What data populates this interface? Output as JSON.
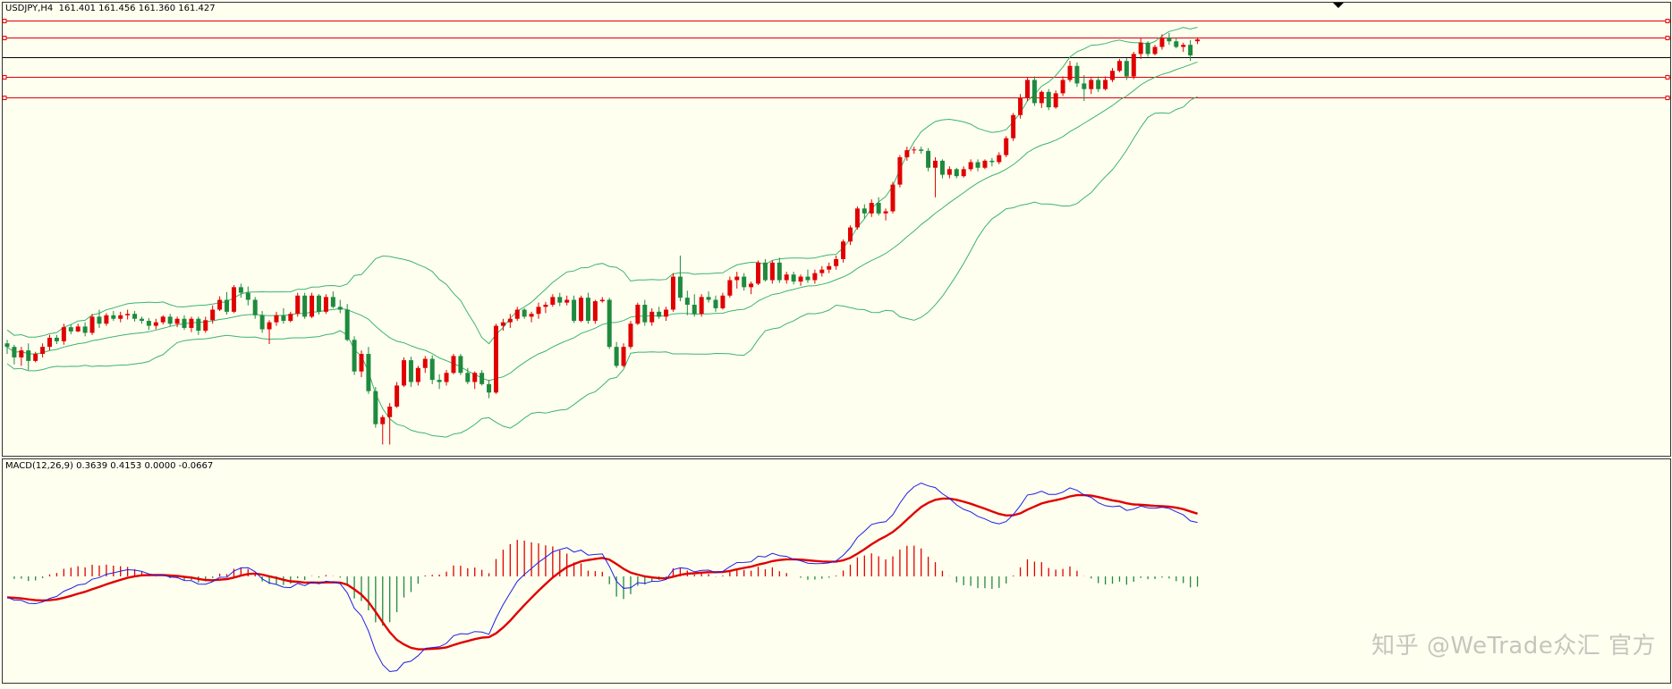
{
  "chart_data": [
    {
      "type": "candlestick",
      "name": "price",
      "symbol_label": "USDJPY,H4",
      "ohlc_header": "161.401 161.456 161.360 161.427",
      "header_text": "USDJPY,H4  161.401 161.456 161.360 161.427",
      "ylim": [
        155.5,
        161.95
      ],
      "horizontal_lines": [
        {
          "value": 161.7,
          "color": "#e00000"
        },
        {
          "value": 161.45,
          "color": "#e00000"
        },
        {
          "value": 161.18,
          "color": "#000000"
        },
        {
          "value": 160.9,
          "color": "#e00000"
        },
        {
          "value": 160.6,
          "color": "#e00000"
        }
      ],
      "bollinger": {
        "period": 20,
        "color": "#3cb371"
      },
      "bull_color": "#e00000",
      "bear_color": "#1e8a3e",
      "candles": [
        [
          157.1,
          157.15,
          156.95,
          157.05
        ],
        [
          157.05,
          157.08,
          156.8,
          156.9
        ],
        [
          156.9,
          157.05,
          156.78,
          157.0
        ],
        [
          157.0,
          157.1,
          156.72,
          156.85
        ],
        [
          156.85,
          156.98,
          156.83,
          156.95
        ],
        [
          156.95,
          157.1,
          156.9,
          157.05
        ],
        [
          157.05,
          157.22,
          157.0,
          157.18
        ],
        [
          157.18,
          157.22,
          157.09,
          157.13
        ],
        [
          157.13,
          157.38,
          157.08,
          157.33
        ],
        [
          157.33,
          157.37,
          157.23,
          157.27
        ],
        [
          157.27,
          157.38,
          157.26,
          157.34
        ],
        [
          157.34,
          157.4,
          157.2,
          157.25
        ],
        [
          157.25,
          157.52,
          157.22,
          157.48
        ],
        [
          157.48,
          157.58,
          157.32,
          157.38
        ],
        [
          157.38,
          157.53,
          157.35,
          157.5
        ],
        [
          157.5,
          157.56,
          157.42,
          157.45
        ],
        [
          157.45,
          157.55,
          157.4,
          157.5
        ],
        [
          157.5,
          157.58,
          157.44,
          157.52
        ],
        [
          157.52,
          157.56,
          157.41,
          157.45
        ],
        [
          157.45,
          157.48,
          157.38,
          157.42
        ],
        [
          157.42,
          157.46,
          157.29,
          157.35
        ],
        [
          157.35,
          157.45,
          157.3,
          157.4
        ],
        [
          157.4,
          157.5,
          157.37,
          157.48
        ],
        [
          157.48,
          157.52,
          157.34,
          157.38
        ],
        [
          157.38,
          157.48,
          157.33,
          157.45
        ],
        [
          157.45,
          157.5,
          157.29,
          157.32
        ],
        [
          157.32,
          157.48,
          157.26,
          157.45
        ],
        [
          157.45,
          157.48,
          157.22,
          157.28
        ],
        [
          157.28,
          157.48,
          157.25,
          157.43
        ],
        [
          157.43,
          157.64,
          157.38,
          157.58
        ],
        [
          157.58,
          157.77,
          157.56,
          157.72
        ],
        [
          157.72,
          157.83,
          157.51,
          157.55
        ],
        [
          157.55,
          157.93,
          157.53,
          157.9
        ],
        [
          157.9,
          157.95,
          157.75,
          157.82
        ],
        [
          157.82,
          157.91,
          157.64,
          157.72
        ],
        [
          157.72,
          157.76,
          157.45,
          157.5
        ],
        [
          157.5,
          157.56,
          157.25,
          157.3
        ],
        [
          157.3,
          157.43,
          157.09,
          157.4
        ],
        [
          157.4,
          157.55,
          157.35,
          157.5
        ],
        [
          157.5,
          157.6,
          157.38,
          157.42
        ],
        [
          157.42,
          157.55,
          157.4,
          157.52
        ],
        [
          157.52,
          157.82,
          157.48,
          157.78
        ],
        [
          157.78,
          157.82,
          157.45,
          157.48
        ],
        [
          157.48,
          157.82,
          157.46,
          157.78
        ],
        [
          157.78,
          157.8,
          157.51,
          157.55
        ],
        [
          157.55,
          157.8,
          157.52,
          157.76
        ],
        [
          157.76,
          157.84,
          157.6,
          157.62
        ],
        [
          157.62,
          157.72,
          157.53,
          157.58
        ],
        [
          157.58,
          157.66,
          157.13,
          157.15
        ],
        [
          157.15,
          157.2,
          156.65,
          156.7
        ],
        [
          156.7,
          157.0,
          156.62,
          156.95
        ],
        [
          156.95,
          157.05,
          156.38,
          156.42
        ],
        [
          156.42,
          156.48,
          155.9,
          155.95
        ],
        [
          155.95,
          156.08,
          155.66,
          156.05
        ],
        [
          156.05,
          156.25,
          155.66,
          156.2
        ],
        [
          156.2,
          156.55,
          156.18,
          156.5
        ],
        [
          156.5,
          156.9,
          156.48,
          156.86
        ],
        [
          156.86,
          156.91,
          156.48,
          156.55
        ],
        [
          156.55,
          156.78,
          156.5,
          156.75
        ],
        [
          156.75,
          156.92,
          156.68,
          156.88
        ],
        [
          156.88,
          156.93,
          156.52,
          156.58
        ],
        [
          156.58,
          156.66,
          156.45,
          156.55
        ],
        [
          156.55,
          156.72,
          156.5,
          156.68
        ],
        [
          156.68,
          156.95,
          156.66,
          156.92
        ],
        [
          156.92,
          156.95,
          156.65,
          156.68
        ],
        [
          156.68,
          156.75,
          156.52,
          156.55
        ],
        [
          156.55,
          156.7,
          156.45,
          156.68
        ],
        [
          156.68,
          156.72,
          156.5,
          156.52
        ],
        [
          156.52,
          156.58,
          156.32,
          156.4
        ],
        [
          156.4,
          157.38,
          156.38,
          157.35
        ],
        [
          157.35,
          157.45,
          157.28,
          157.4
        ],
        [
          157.4,
          157.52,
          157.32,
          157.45
        ],
        [
          157.45,
          157.62,
          157.42,
          157.58
        ],
        [
          157.58,
          157.6,
          157.45,
          157.48
        ],
        [
          157.48,
          157.55,
          157.4,
          157.52
        ],
        [
          157.52,
          157.68,
          157.45,
          157.62
        ],
        [
          157.62,
          157.69,
          157.53,
          157.65
        ],
        [
          157.65,
          157.8,
          157.62,
          157.76
        ],
        [
          157.76,
          157.82,
          157.63,
          157.68
        ],
        [
          157.68,
          157.78,
          157.64,
          157.72
        ],
        [
          157.72,
          157.78,
          157.39,
          157.42
        ],
        [
          157.42,
          157.78,
          157.4,
          157.75
        ],
        [
          157.75,
          157.82,
          157.38,
          157.42
        ],
        [
          157.42,
          157.72,
          157.38,
          157.7
        ],
        [
          157.7,
          157.76,
          157.68,
          157.72
        ],
        [
          157.72,
          157.75,
          157.02,
          157.05
        ],
        [
          157.05,
          157.12,
          156.75,
          156.78
        ],
        [
          156.78,
          157.1,
          156.76,
          157.05
        ],
        [
          157.05,
          157.42,
          157.02,
          157.38
        ],
        [
          157.38,
          157.68,
          157.36,
          157.65
        ],
        [
          157.65,
          157.72,
          157.35,
          157.4
        ],
        [
          157.4,
          157.6,
          157.35,
          157.55
        ],
        [
          157.55,
          157.62,
          157.45,
          157.48
        ],
        [
          157.48,
          157.62,
          157.42,
          157.58
        ],
        [
          157.58,
          158.1,
          157.55,
          158.05
        ],
        [
          158.05,
          158.35,
          157.7,
          157.75
        ],
        [
          157.75,
          157.85,
          157.5,
          157.65
        ],
        [
          157.65,
          157.8,
          157.48,
          157.52
        ],
        [
          157.52,
          157.8,
          157.48,
          157.76
        ],
        [
          157.76,
          157.84,
          157.68,
          157.72
        ],
        [
          157.72,
          157.78,
          157.55,
          157.6
        ],
        [
          157.6,
          157.82,
          157.58,
          157.78
        ],
        [
          157.78,
          158.05,
          157.75,
          158.0
        ],
        [
          158.0,
          158.12,
          157.88,
          158.05
        ],
        [
          158.05,
          158.1,
          157.85,
          157.9
        ],
        [
          157.9,
          157.98,
          157.8,
          157.95
        ],
        [
          157.95,
          158.28,
          157.93,
          158.25
        ],
        [
          158.25,
          158.3,
          157.98,
          158.0
        ],
        [
          158.0,
          158.28,
          157.95,
          158.25
        ],
        [
          158.25,
          158.32,
          157.96,
          158.0
        ],
        [
          158.0,
          158.12,
          157.95,
          158.08
        ],
        [
          158.08,
          158.12,
          157.94,
          157.98
        ],
        [
          157.98,
          158.08,
          157.92,
          158.05
        ],
        [
          158.05,
          158.15,
          157.96,
          158.0
        ],
        [
          158.0,
          158.15,
          157.95,
          158.1
        ],
        [
          158.1,
          158.2,
          158.05,
          158.15
        ],
        [
          158.15,
          158.25,
          158.1,
          158.2
        ],
        [
          158.2,
          158.35,
          158.15,
          158.3
        ],
        [
          158.3,
          158.58,
          158.25,
          158.55
        ],
        [
          158.55,
          158.78,
          158.5,
          158.75
        ],
        [
          158.75,
          159.05,
          158.72,
          159.02
        ],
        [
          159.02,
          159.08,
          158.88,
          158.95
        ],
        [
          158.95,
          159.15,
          158.9,
          159.1
        ],
        [
          159.1,
          159.18,
          158.92,
          158.95
        ],
        [
          158.95,
          159.02,
          158.85,
          158.98
        ],
        [
          158.98,
          159.4,
          158.95,
          159.36
        ],
        [
          159.36,
          159.78,
          159.32,
          159.75
        ],
        [
          159.75,
          159.9,
          159.7,
          159.85
        ],
        [
          159.85,
          159.9,
          159.8,
          159.86
        ],
        [
          159.86,
          159.9,
          159.8,
          159.84
        ],
        [
          159.84,
          159.88,
          159.55,
          159.6
        ],
        [
          159.6,
          159.75,
          159.18,
          159.7
        ],
        [
          159.7,
          159.72,
          159.45,
          159.5
        ],
        [
          159.5,
          159.62,
          159.45,
          159.58
        ],
        [
          159.58,
          159.6,
          159.45,
          159.48
        ],
        [
          159.48,
          159.62,
          159.46,
          159.58
        ],
        [
          159.58,
          159.72,
          159.55,
          159.68
        ],
        [
          159.68,
          159.72,
          159.55,
          159.6
        ],
        [
          159.6,
          159.72,
          159.58,
          159.7
        ],
        [
          159.7,
          159.74,
          159.62,
          159.68
        ],
        [
          159.68,
          159.82,
          159.65,
          159.78
        ],
        [
          159.78,
          160.05,
          159.75,
          160.02
        ],
        [
          160.02,
          160.38,
          159.98,
          160.35
        ],
        [
          160.35,
          160.65,
          160.3,
          160.6
        ],
        [
          160.6,
          160.88,
          160.55,
          160.85
        ],
        [
          160.85,
          160.9,
          160.48,
          160.52
        ],
        [
          160.52,
          160.7,
          160.45,
          160.68
        ],
        [
          160.68,
          160.72,
          160.42,
          160.46
        ],
        [
          160.46,
          160.7,
          160.44,
          160.66
        ],
        [
          160.66,
          160.9,
          160.62,
          160.85
        ],
        [
          160.85,
          161.12,
          160.82,
          161.05
        ],
        [
          161.05,
          161.1,
          160.75,
          160.8
        ],
        [
          160.8,
          160.92,
          160.55,
          160.72
        ],
        [
          160.72,
          160.88,
          160.65,
          160.85
        ],
        [
          160.85,
          160.9,
          160.68,
          160.72
        ],
        [
          160.72,
          160.9,
          160.7,
          160.85
        ],
        [
          160.85,
          161.02,
          160.82,
          160.98
        ],
        [
          160.98,
          161.15,
          160.96,
          161.12
        ],
        [
          161.12,
          161.16,
          160.85,
          160.9
        ],
        [
          160.9,
          161.25,
          160.86,
          161.22
        ],
        [
          161.22,
          161.45,
          161.15,
          161.38
        ],
        [
          161.38,
          161.4,
          161.18,
          161.22
        ],
        [
          161.22,
          161.35,
          161.2,
          161.32
        ],
        [
          161.32,
          161.5,
          161.28,
          161.45
        ],
        [
          161.45,
          161.52,
          161.35,
          161.4
        ],
        [
          161.4,
          161.45,
          161.3,
          161.32
        ],
        [
          161.32,
          161.38,
          161.25,
          161.35
        ],
        [
          161.35,
          161.42,
          161.12,
          161.2
        ],
        [
          161.401,
          161.456,
          161.36,
          161.427
        ]
      ]
    },
    {
      "type": "macd",
      "name": "macd",
      "label": "MACD(12,26,9) 0.3639 0.4153 0.0000 -0.0667",
      "params": [
        12,
        26,
        9
      ],
      "values": [
        0.3639,
        0.4153,
        0.0,
        -0.0667
      ],
      "main_color": "#1e1ee6",
      "signal_color": "#e00000",
      "hist_pos_color": "#e00000",
      "hist_neg_color": "#1e8a3e"
    }
  ],
  "watermark": "知乎 @WeTrade众汇 官方",
  "tools": {
    "scroll_marker": "chart-shift-marker"
  }
}
